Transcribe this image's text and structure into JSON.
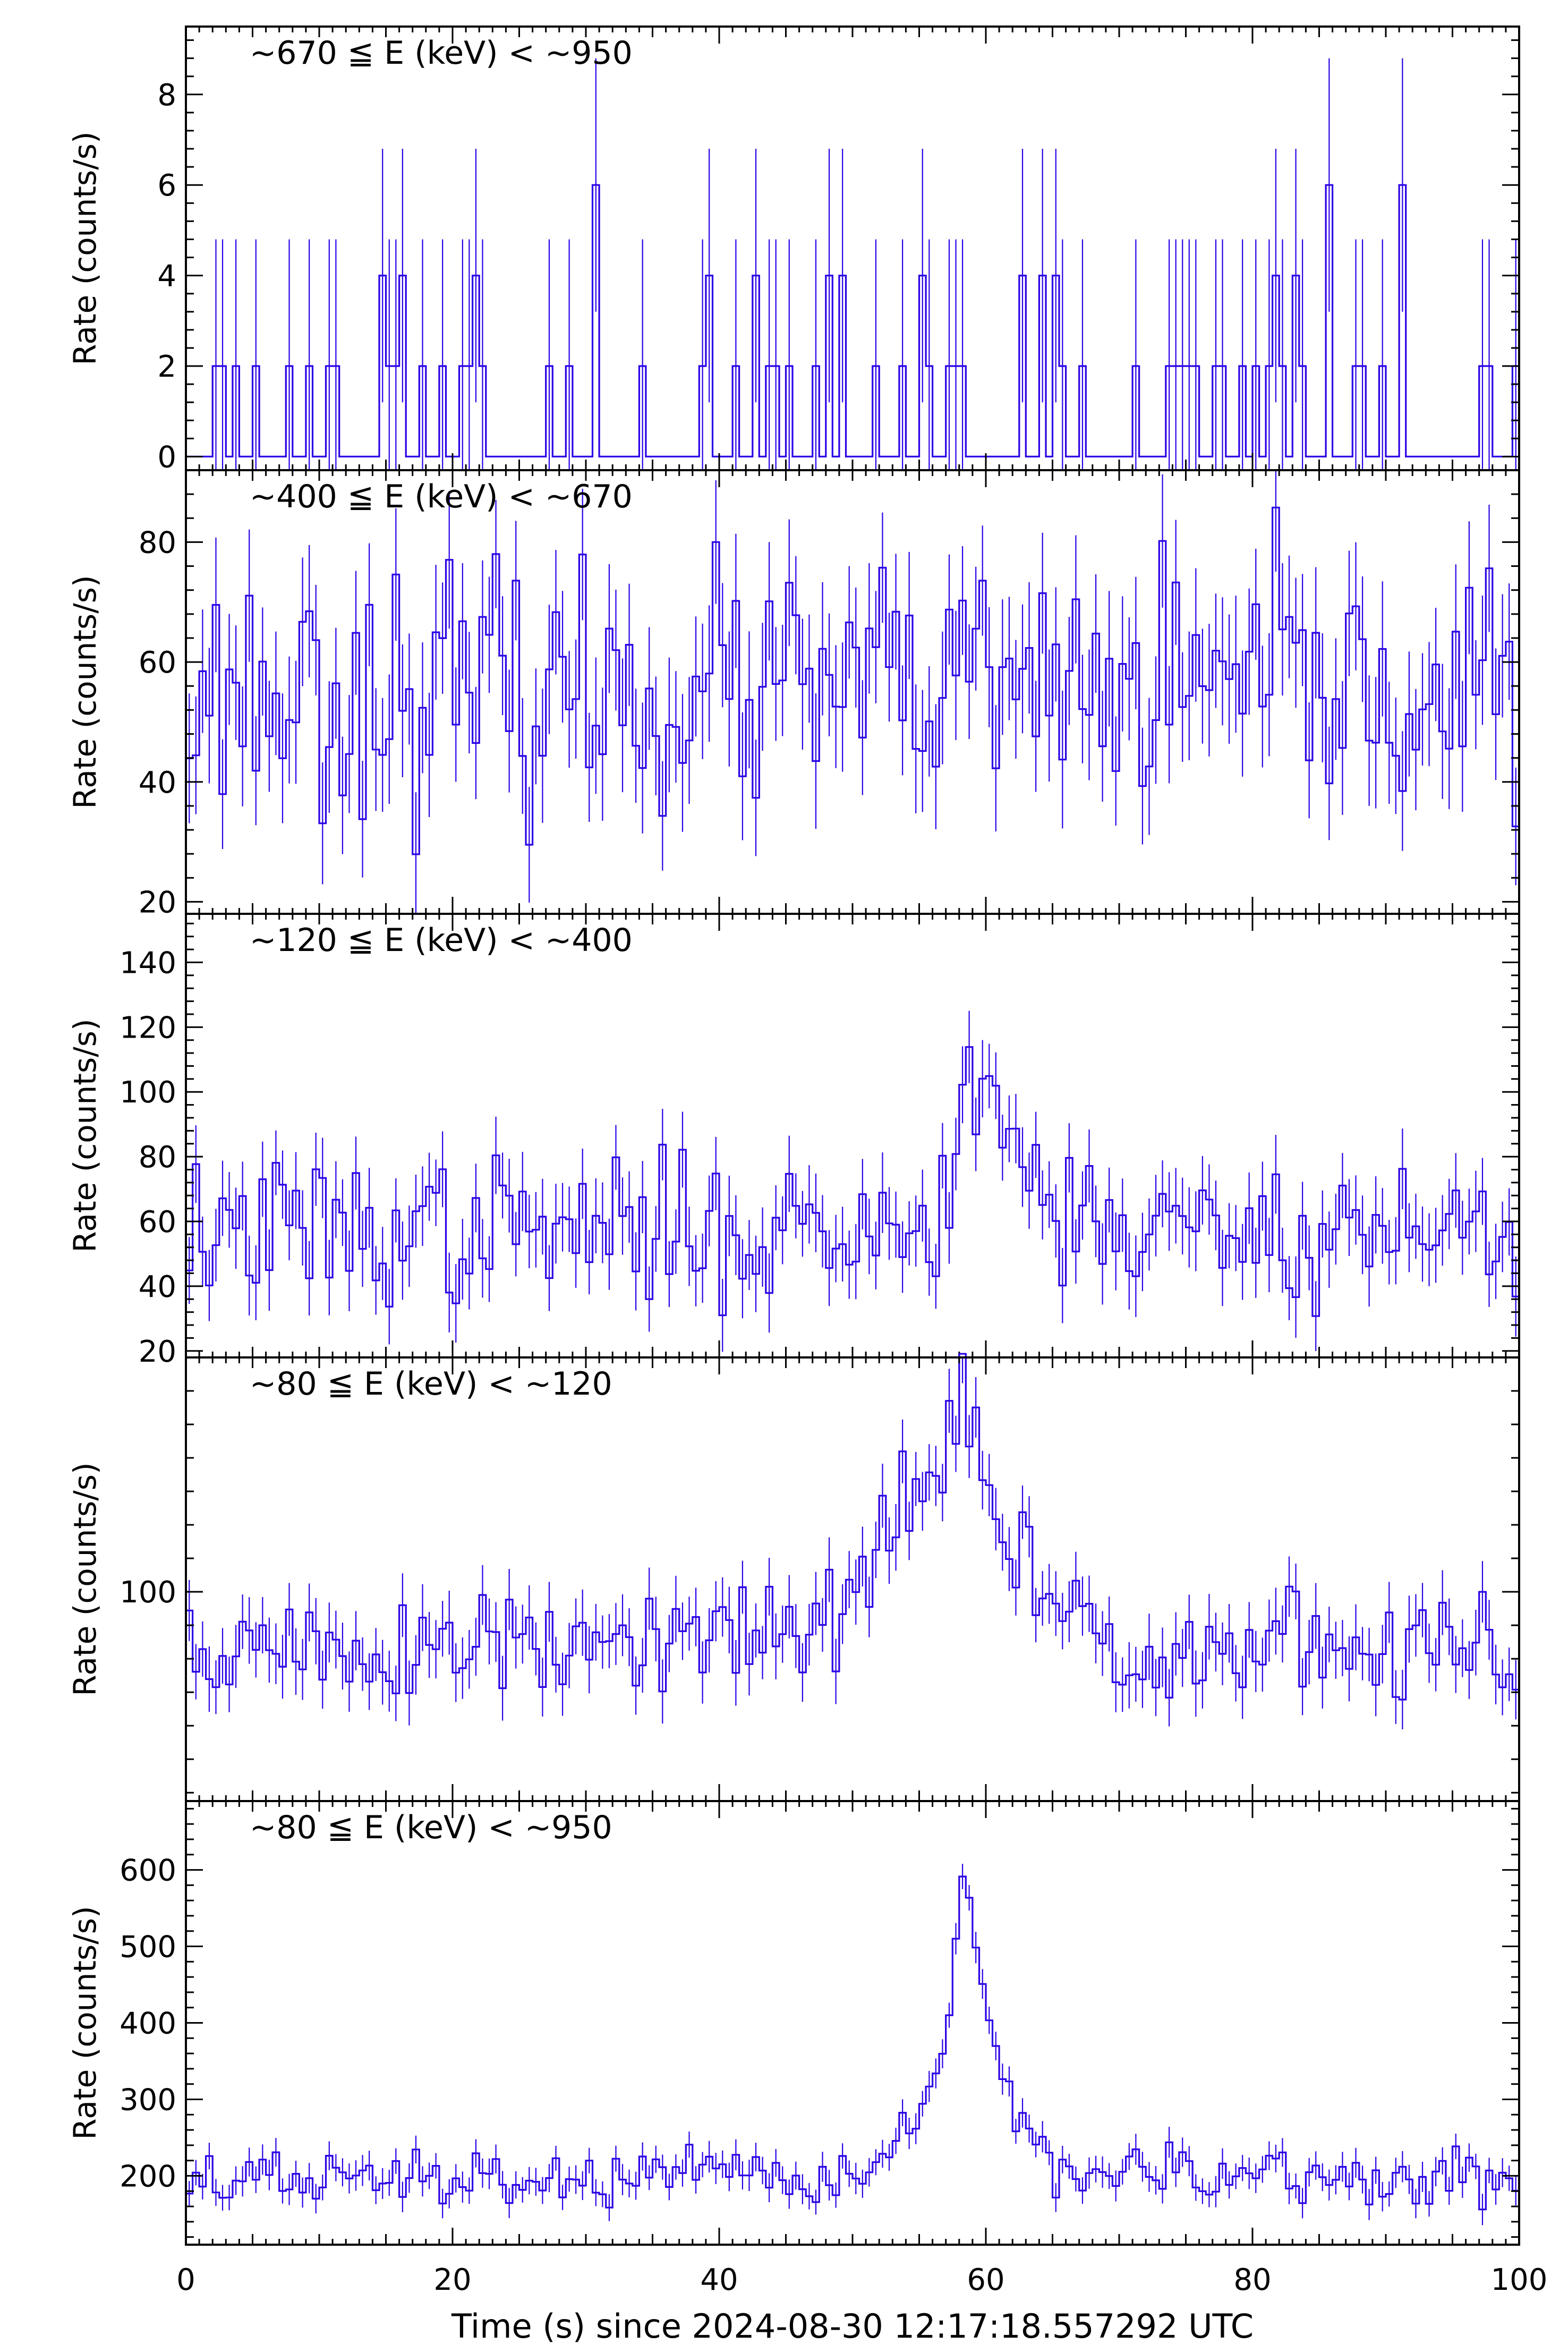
{
  "chart_data": [
    {
      "type": "line",
      "style": "histogram-step with error bars",
      "title": "~670 ≦ E (keV) < ~950",
      "ylabel": "Rate (counts/s)",
      "xlim": [
        0,
        100
      ],
      "ylim": [
        -0.3,
        9.5
      ],
      "yticks": [
        0,
        2,
        4,
        6,
        8
      ],
      "color": "#2b00e6",
      "bin_width": 0.5,
      "base_level": 0,
      "noise": 1.6,
      "seed": 11,
      "mode": "sparse",
      "peaks": []
    },
    {
      "type": "line",
      "style": "histogram-step with error bars",
      "title": "~400 ≦ E (keV) < ~670",
      "ylabel": "Rate (counts/s)",
      "xlim": [
        0,
        100
      ],
      "ylim": [
        18,
        92
      ],
      "yticks": [
        20,
        40,
        60,
        80
      ],
      "color": "#2b00e6",
      "bin_width": 0.5,
      "base_level": 55,
      "noise": 10,
      "seed": 23,
      "mode": "noise",
      "peaks": []
    },
    {
      "type": "line",
      "style": "histogram-step with error bars",
      "title": "~120 ≦ E (keV) < ~400",
      "ylabel": "Rate (counts/s)",
      "xlim": [
        0,
        100
      ],
      "ylim": [
        18,
        155
      ],
      "yticks": [
        20,
        40,
        60,
        80,
        100,
        120,
        140
      ],
      "color": "#2b00e6",
      "bin_width": 0.5,
      "base_level": 57,
      "noise": 11,
      "seed": 37,
      "mode": "noise",
      "peaks": [
        {
          "t": 58.3,
          "amp": 65,
          "rise": 0.8,
          "decay": 2.5
        },
        {
          "t": 61.0,
          "amp": 20,
          "rise": 1.0,
          "decay": 3.0
        }
      ]
    },
    {
      "type": "line",
      "style": "histogram-step with error bars",
      "title": "~80 ≦ E (keV) < ~120",
      "ylabel": "Rate (counts/s)",
      "xlim": [
        0,
        100
      ],
      "ylim": [
        75,
        128
      ],
      "yticks": [
        100
      ],
      "color": "#2b00e6",
      "bin_width": 0.5,
      "base_level": 93,
      "noise": 3.5,
      "seed": 51,
      "mode": "noise",
      "peaks": [
        {
          "t": 58.3,
          "amp": 30,
          "rise": 5.0,
          "decay": 4.0
        },
        {
          "t": 53.5,
          "amp": 6,
          "rise": 1.5,
          "decay": 2.0
        }
      ]
    },
    {
      "type": "line",
      "style": "histogram-step with error bars",
      "title": "~80 ≦ E (keV) < ~950",
      "ylabel": "Rate (counts/s)",
      "xlim": [
        0,
        100
      ],
      "ylim": [
        110,
        690
      ],
      "yticks": [
        200,
        300,
        400,
        500,
        600
      ],
      "xticks": [
        0,
        20,
        40,
        60,
        80,
        100
      ],
      "xlabel": "Time (s) since 2024-08-30 12:17:18.557292 UTC",
      "color": "#2b00e6",
      "bin_width": 0.5,
      "base_level": 195,
      "noise": 18,
      "seed": 67,
      "mode": "noise",
      "peaks": [
        {
          "t": 58.3,
          "amp": 420,
          "rise": 1.6,
          "decay": 2.6
        },
        {
          "t": 53.5,
          "amp": 60,
          "rise": 1.2,
          "decay": 1.8
        }
      ]
    }
  ]
}
